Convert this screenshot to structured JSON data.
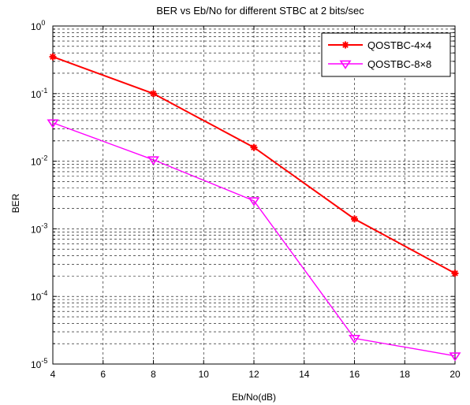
{
  "chart_data": {
    "type": "line",
    "title": "BER vs Eb/No for different STBC at 2 bits/sec",
    "xlabel": "Eb/No(dB)",
    "ylabel": "BER",
    "xlim": [
      4,
      20
    ],
    "ylim": [
      1e-05,
      1
    ],
    "yscale": "log",
    "grid": true,
    "legend_position": "top-right",
    "x_ticks": [
      4,
      6,
      8,
      10,
      12,
      14,
      16,
      18,
      20
    ],
    "y_ticks": [
      {
        "base": "10",
        "exp": "0"
      },
      {
        "base": "10",
        "exp": "-1"
      },
      {
        "base": "10",
        "exp": "-2"
      },
      {
        "base": "10",
        "exp": "-3"
      },
      {
        "base": "10",
        "exp": "-4"
      },
      {
        "base": "10",
        "exp": "-5"
      }
    ],
    "x": [
      4,
      8,
      12,
      16,
      20
    ],
    "series": [
      {
        "name": "QOSTBC-4×4",
        "values": [
          0.35,
          0.1,
          0.016,
          0.0014,
          0.00022
        ],
        "color": "#ff0000",
        "marker": "star"
      },
      {
        "name": "QOSTBC-8×8",
        "values": [
          0.037,
          0.0105,
          0.0026,
          2.4e-05,
          1.32e-05
        ],
        "color": "#ff00ff",
        "marker": "triangle-down"
      }
    ]
  }
}
